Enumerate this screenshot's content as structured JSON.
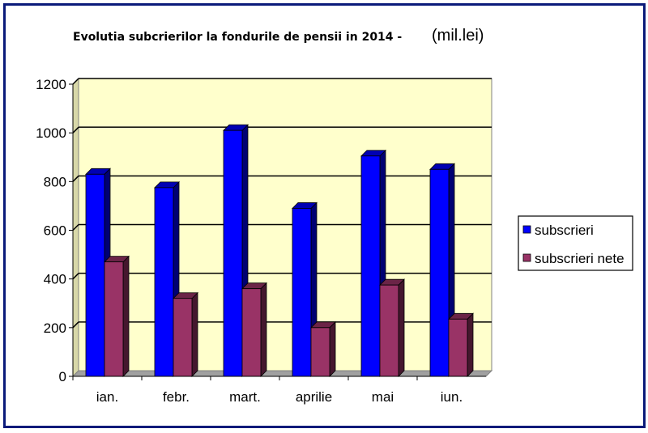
{
  "chart_data": {
    "type": "bar",
    "style": "3d-clustered-column",
    "title": "Evolutia subcrierilor la fondurile de pensii in 2014 -",
    "title_unit": "(mil.lei)",
    "categories": [
      "ian.",
      "febr.",
      "mart.",
      "aprilie",
      "mai",
      "iun."
    ],
    "series": [
      {
        "name": "subscrieri",
        "values": [
          830,
          775,
          1010,
          690,
          905,
          850
        ],
        "color": "#0000ff"
      },
      {
        "name": "subscrieri nete",
        "values": [
          470,
          320,
          360,
          200,
          375,
          235
        ],
        "color": "#993366"
      }
    ],
    "ylim": [
      0,
      1200
    ],
    "yticks": [
      0,
      200,
      400,
      600,
      800,
      1000,
      1200
    ],
    "grid": true,
    "plot_background": "#ffffcc",
    "legend_position": "right"
  }
}
